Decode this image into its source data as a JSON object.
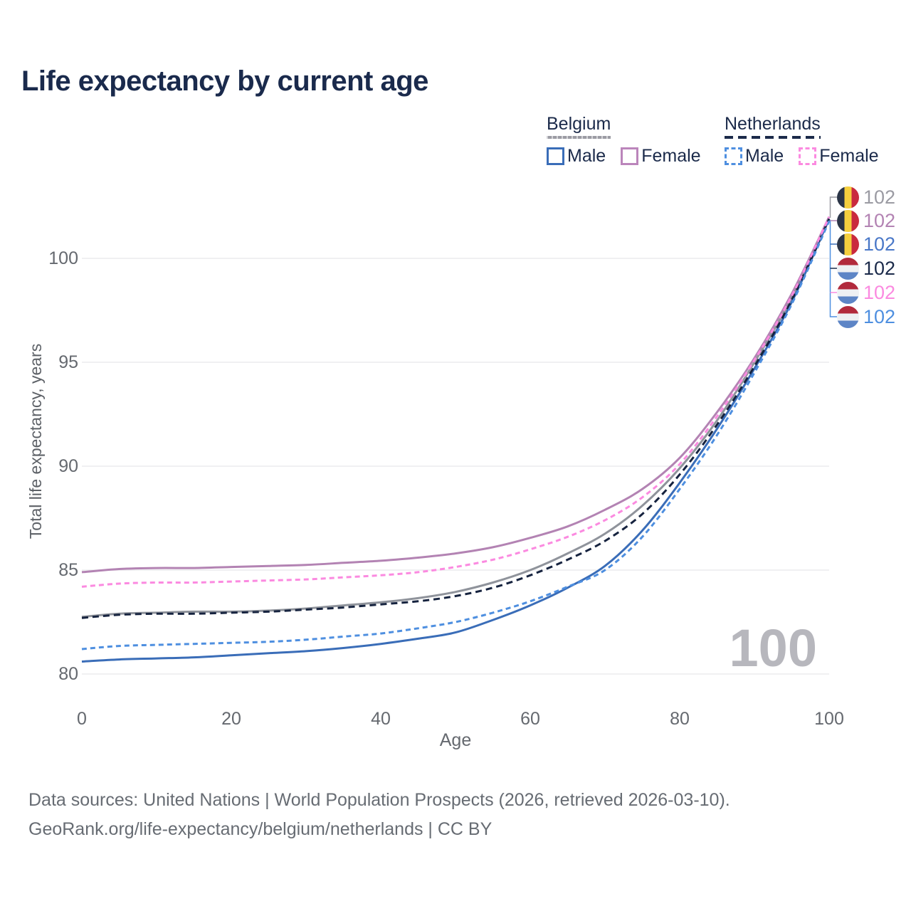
{
  "page": {
    "title": "Life expectancy by current age"
  },
  "legend": {
    "groups": [
      {
        "label": "Belgium",
        "line_style": "solid",
        "underline_color": "#9b9ba3",
        "items": [
          {
            "label": "Male",
            "color": "#3a6db8",
            "style": "solid"
          },
          {
            "label": "Female",
            "color": "#bb85bb",
            "style": "solid"
          }
        ]
      },
      {
        "label": "Netherlands",
        "line_style": "dashed",
        "underline_color": "#1b2a4a",
        "items": [
          {
            "label": "Male",
            "color": "#4e8fe0",
            "style": "dashed"
          },
          {
            "label": "Female",
            "color": "#fb8ae0",
            "style": "dashed"
          }
        ]
      }
    ]
  },
  "chart_data": {
    "type": "line",
    "title": "Life expectancy by current age",
    "xlabel": "Age",
    "ylabel": "Total life expectancy, years",
    "x_ticks": [
      0,
      20,
      40,
      60,
      80,
      100
    ],
    "y_ticks": [
      80,
      85,
      90,
      95,
      100
    ],
    "xlim": [
      0,
      100
    ],
    "ylim": [
      79.5,
      102.5
    ],
    "grid": "horizontal",
    "legend_position": "top-right",
    "ages": [
      0,
      5,
      10,
      15,
      20,
      25,
      30,
      35,
      40,
      45,
      50,
      55,
      60,
      65,
      70,
      75,
      80,
      85,
      90,
      95,
      100
    ],
    "series": [
      {
        "id": "be-both",
        "name": "Belgium Both sexes",
        "color": "#8f939b",
        "dash": null,
        "values": [
          82.75,
          82.9,
          82.95,
          83.0,
          83.0,
          83.05,
          83.15,
          83.3,
          83.45,
          83.65,
          83.95,
          84.4,
          85.0,
          85.8,
          86.75,
          88.1,
          89.9,
          92.2,
          95.0,
          98.1,
          102.0
        ]
      },
      {
        "id": "be-male",
        "name": "Belgium Male",
        "color": "#3a6db8",
        "dash": null,
        "values": [
          80.6,
          80.7,
          80.75,
          80.8,
          80.9,
          81.0,
          81.1,
          81.25,
          81.45,
          81.7,
          82.0,
          82.6,
          83.3,
          84.15,
          85.2,
          86.9,
          89.2,
          91.8,
          94.7,
          97.9,
          101.9
        ]
      },
      {
        "id": "be-female",
        "name": "Belgium Female",
        "color": "#b383b3",
        "dash": null,
        "values": [
          84.9,
          85.05,
          85.1,
          85.1,
          85.15,
          85.2,
          85.25,
          85.35,
          85.45,
          85.6,
          85.8,
          86.1,
          86.55,
          87.1,
          87.9,
          88.9,
          90.4,
          92.6,
          95.2,
          98.3,
          102.0
        ]
      },
      {
        "id": "nl-both",
        "name": "Netherlands Both sexes",
        "color": "#16233f",
        "dash": "9 6",
        "values": [
          82.7,
          82.85,
          82.9,
          82.9,
          82.95,
          83.0,
          83.1,
          83.2,
          83.35,
          83.5,
          83.75,
          84.15,
          84.75,
          85.5,
          86.4,
          87.7,
          89.6,
          92.0,
          94.8,
          98.0,
          101.9
        ]
      },
      {
        "id": "nl-male",
        "name": "Netherlands Male",
        "color": "#4e8fe0",
        "dash": "7 5",
        "values": [
          81.2,
          81.35,
          81.4,
          81.45,
          81.5,
          81.55,
          81.65,
          81.8,
          81.95,
          82.2,
          82.5,
          82.95,
          83.5,
          84.2,
          85.0,
          86.6,
          88.9,
          91.5,
          94.5,
          97.8,
          101.8
        ]
      },
      {
        "id": "nl-female",
        "name": "Netherlands Female",
        "color": "#fb8ae0",
        "dash": "7 5",
        "values": [
          84.2,
          84.35,
          84.4,
          84.4,
          84.45,
          84.5,
          84.55,
          84.65,
          84.75,
          84.9,
          85.15,
          85.5,
          86.0,
          86.6,
          87.4,
          88.5,
          90.1,
          92.4,
          95.1,
          98.2,
          102.0
        ]
      }
    ]
  },
  "annotations": {
    "end_value_labels": [
      {
        "flag": "belgium",
        "series": "be-both",
        "value": "102",
        "color": "#9b9ba3"
      },
      {
        "flag": "belgium",
        "series": "be-female",
        "value": "102",
        "color": "#b383b3"
      },
      {
        "flag": "belgium",
        "series": "be-male",
        "value": "102",
        "color": "#4a78c8"
      },
      {
        "flag": "netherlands",
        "series": "nl-both",
        "value": "102",
        "color": "#1b2a4a"
      },
      {
        "flag": "netherlands",
        "series": "nl-female",
        "value": "102",
        "color": "#fb8ae0"
      },
      {
        "flag": "netherlands",
        "series": "nl-male",
        "value": "102",
        "color": "#4e8fe0"
      }
    ]
  },
  "watermark": {
    "text": "100"
  },
  "footer": {
    "line1": "Data sources: United Nations | World Population Prospects (2026, retrieved 2026-03-10).",
    "line2": "GeoRank.org/life-expectancy/belgium/netherlands | CC BY"
  }
}
